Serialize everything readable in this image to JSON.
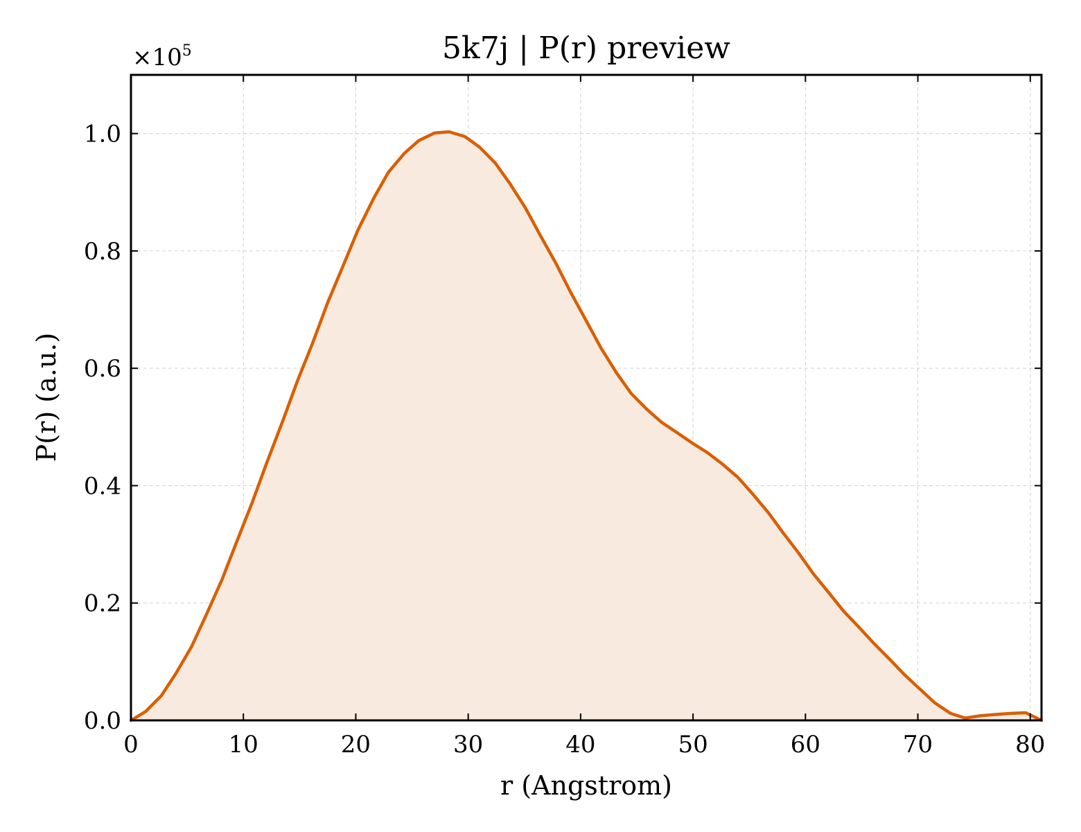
{
  "chart_data": {
    "type": "area",
    "title": "5k7j | P(r) preview",
    "xlabel": "r (Angstrom)",
    "ylabel": "P(r) (a.u.)",
    "y_scale_factor_label": "×10",
    "y_scale_factor_exponent": "5",
    "xlim": [
      0,
      81
    ],
    "ylim": [
      0,
      1.1
    ],
    "x_ticks": [
      0,
      10,
      20,
      30,
      40,
      50,
      60,
      70,
      80
    ],
    "x_tick_labels": [
      "0",
      "10",
      "20",
      "30",
      "40",
      "50",
      "60",
      "70",
      "80"
    ],
    "y_ticks": [
      0.0,
      0.2,
      0.4,
      0.6,
      0.8,
      1.0
    ],
    "y_tick_labels": [
      "0.0",
      "0.2",
      "0.4",
      "0.6",
      "0.8",
      "1.0"
    ],
    "grid": true,
    "line_color": "#d95f02",
    "fill_color": "#f9eadf",
    "series": [
      {
        "x": [
          0,
          1.3,
          2.7,
          4.0,
          5.4,
          6.7,
          8.1,
          9.4,
          10.8,
          12.1,
          13.5,
          14.8,
          16.2,
          17.5,
          18.9,
          20.2,
          21.6,
          22.9,
          24.3,
          25.6,
          27.0,
          28.3,
          29.7,
          31.0,
          32.4,
          33.7,
          35.1,
          36.4,
          37.8,
          39.1,
          40.5,
          41.8,
          43.2,
          44.5,
          45.9,
          47.2,
          48.6,
          49.9,
          51.3,
          52.6,
          54.0,
          55.3,
          56.7,
          58.0,
          59.4,
          60.7,
          62.1,
          63.4,
          64.8,
          66.1,
          67.5,
          68.8,
          70.2,
          71.5,
          72.9,
          74.2,
          75.6,
          76.9,
          78.3,
          79.6,
          81.0
        ],
        "y": [
          0.0,
          0.015,
          0.042,
          0.08,
          0.126,
          0.18,
          0.24,
          0.304,
          0.372,
          0.44,
          0.51,
          0.578,
          0.645,
          0.712,
          0.776,
          0.836,
          0.89,
          0.934,
          0.966,
          0.988,
          1.001,
          1.003,
          0.995,
          0.977,
          0.95,
          0.915,
          0.873,
          0.827,
          0.779,
          0.73,
          0.681,
          0.635,
          0.592,
          0.557,
          0.53,
          0.508,
          0.49,
          0.473,
          0.456,
          0.437,
          0.414,
          0.386,
          0.354,
          0.32,
          0.285,
          0.25,
          0.217,
          0.186,
          0.158,
          0.131,
          0.104,
          0.078,
          0.053,
          0.03,
          0.012,
          0.004,
          0.008,
          0.01,
          0.012,
          0.013,
          0.0
        ]
      }
    ]
  }
}
